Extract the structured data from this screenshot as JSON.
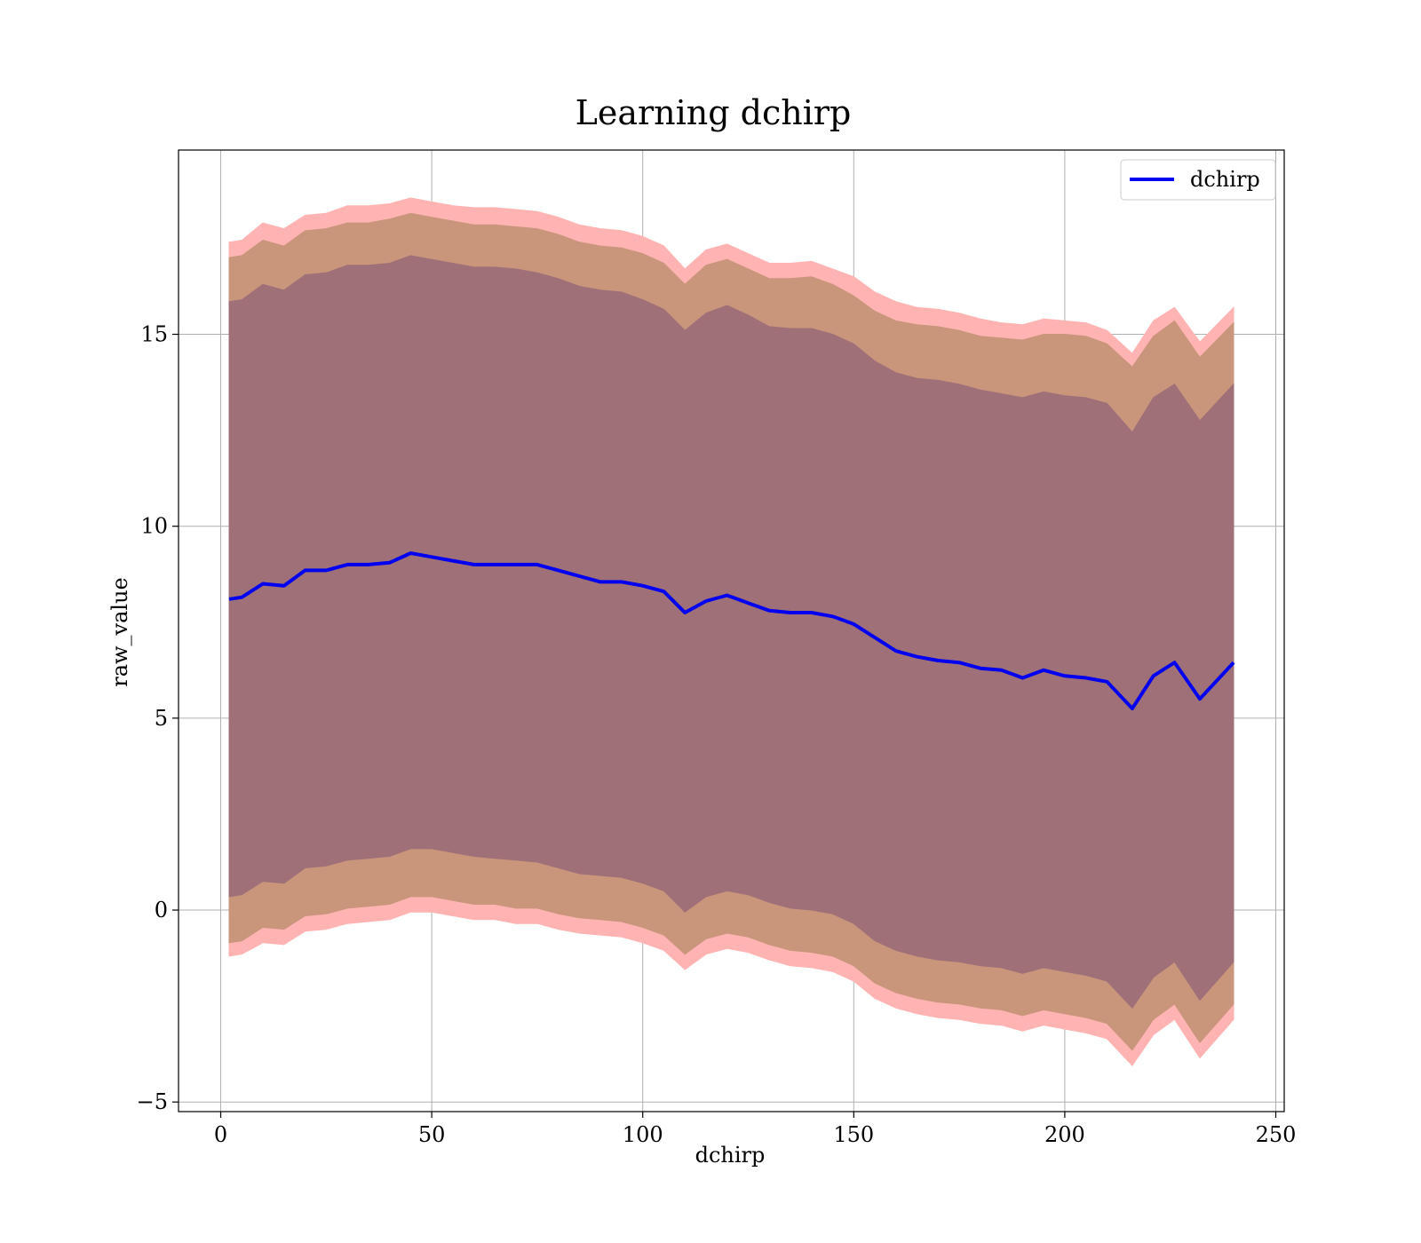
{
  "chart_data": {
    "type": "line",
    "title": "Learning dchirp",
    "xlabel": "dchirp",
    "ylabel": "raw_value",
    "xlim": [
      -10,
      252
    ],
    "ylim": [
      -5.25,
      19.8
    ],
    "xticks": [
      0,
      50,
      100,
      150,
      200,
      250
    ],
    "yticks": [
      -5,
      0,
      5,
      10,
      15
    ],
    "xtick_labels": [
      "0",
      "50",
      "100",
      "150",
      "200",
      "250"
    ],
    "ytick_labels": [
      "−5",
      "0",
      "5",
      "10",
      "15"
    ],
    "grid": true,
    "legend": {
      "position": "top-right",
      "entries": [
        "dchirp"
      ]
    },
    "colors": {
      "line": "#0000ee",
      "band_outer": "#ffb3b3",
      "band_middle": "#c9967c",
      "band_inner": "#a07078",
      "grid": "#b0b0b0"
    },
    "x": [
      2,
      5,
      10,
      15,
      20,
      25,
      30,
      35,
      40,
      45,
      50,
      55,
      60,
      65,
      70,
      75,
      80,
      85,
      90,
      95,
      100,
      105,
      110,
      115,
      120,
      125,
      130,
      135,
      140,
      145,
      150,
      155,
      160,
      165,
      170,
      175,
      180,
      185,
      190,
      195,
      200,
      205,
      210,
      216,
      221,
      226,
      232,
      240
    ],
    "series": [
      {
        "name": "dchirp",
        "values": [
          8.1,
          8.15,
          8.5,
          8.45,
          8.85,
          8.85,
          9.0,
          9.0,
          9.05,
          9.3,
          9.2,
          9.1,
          9.0,
          9.0,
          9.0,
          9.0,
          8.85,
          8.7,
          8.55,
          8.55,
          8.45,
          8.3,
          7.75,
          8.05,
          8.2,
          8.0,
          7.8,
          7.75,
          7.75,
          7.65,
          7.45,
          7.1,
          6.75,
          6.6,
          6.5,
          6.45,
          6.3,
          6.25,
          6.05,
          6.25,
          6.1,
          6.05,
          5.95,
          5.25,
          6.1,
          6.45,
          5.5,
          6.45
        ]
      }
    ],
    "bands": [
      {
        "upper": [
          17.4,
          17.45,
          17.9,
          17.75,
          18.1,
          18.15,
          18.35,
          18.35,
          18.4,
          18.55,
          18.45,
          18.35,
          18.3,
          18.3,
          18.25,
          18.2,
          18.05,
          17.85,
          17.75,
          17.7,
          17.55,
          17.3,
          16.7,
          17.2,
          17.35,
          17.1,
          16.85,
          16.85,
          16.9,
          16.7,
          16.5,
          16.1,
          15.85,
          15.7,
          15.65,
          15.55,
          15.4,
          15.3,
          15.25,
          15.4,
          15.35,
          15.3,
          15.1,
          14.5,
          15.35,
          15.7,
          14.8,
          15.7
        ],
        "lower": [
          -1.2,
          -1.15,
          -0.85,
          -0.9,
          -0.55,
          -0.5,
          -0.35,
          -0.3,
          -0.25,
          -0.05,
          -0.05,
          -0.15,
          -0.25,
          -0.25,
          -0.35,
          -0.35,
          -0.5,
          -0.6,
          -0.65,
          -0.7,
          -0.85,
          -1.05,
          -1.55,
          -1.15,
          -1.0,
          -1.1,
          -1.3,
          -1.45,
          -1.5,
          -1.6,
          -1.85,
          -2.3,
          -2.55,
          -2.7,
          -2.8,
          -2.85,
          -2.95,
          -3.0,
          -3.15,
          -3.0,
          -3.1,
          -3.2,
          -3.35,
          -4.05,
          -3.25,
          -2.85,
          -3.85,
          -2.85
        ]
      },
      {
        "upper": [
          17.0,
          17.05,
          17.45,
          17.3,
          17.7,
          17.75,
          17.9,
          17.9,
          18.0,
          18.15,
          18.05,
          17.95,
          17.85,
          17.85,
          17.8,
          17.75,
          17.6,
          17.4,
          17.3,
          17.25,
          17.1,
          16.85,
          16.3,
          16.8,
          16.95,
          16.7,
          16.45,
          16.45,
          16.5,
          16.3,
          16.0,
          15.6,
          15.35,
          15.25,
          15.2,
          15.1,
          14.95,
          14.9,
          14.85,
          15.0,
          15.0,
          14.95,
          14.75,
          14.15,
          14.95,
          15.35,
          14.4,
          15.3
        ],
        "lower": [
          -0.85,
          -0.8,
          -0.45,
          -0.5,
          -0.15,
          -0.1,
          0.05,
          0.1,
          0.15,
          0.35,
          0.35,
          0.25,
          0.15,
          0.15,
          0.05,
          0.05,
          -0.1,
          -0.2,
          -0.25,
          -0.3,
          -0.45,
          -0.65,
          -1.15,
          -0.75,
          -0.6,
          -0.7,
          -0.9,
          -1.05,
          -1.1,
          -1.2,
          -1.45,
          -1.9,
          -2.15,
          -2.3,
          -2.4,
          -2.45,
          -2.55,
          -2.6,
          -2.75,
          -2.6,
          -2.7,
          -2.8,
          -2.95,
          -3.65,
          -2.85,
          -2.45,
          -3.45,
          -2.45
        ]
      },
      {
        "upper": [
          15.85,
          15.9,
          16.3,
          16.15,
          16.55,
          16.6,
          16.8,
          16.8,
          16.85,
          17.05,
          16.95,
          16.85,
          16.75,
          16.75,
          16.7,
          16.6,
          16.45,
          16.25,
          16.15,
          16.1,
          15.9,
          15.65,
          15.1,
          15.55,
          15.75,
          15.5,
          15.2,
          15.15,
          15.15,
          15.0,
          14.75,
          14.3,
          14.0,
          13.85,
          13.8,
          13.7,
          13.55,
          13.45,
          13.35,
          13.5,
          13.4,
          13.35,
          13.2,
          12.45,
          13.35,
          13.7,
          12.75,
          13.7
        ],
        "lower": [
          0.35,
          0.4,
          0.75,
          0.7,
          1.1,
          1.15,
          1.3,
          1.35,
          1.4,
          1.6,
          1.6,
          1.5,
          1.4,
          1.35,
          1.3,
          1.25,
          1.1,
          0.95,
          0.9,
          0.85,
          0.7,
          0.5,
          -0.05,
          0.35,
          0.5,
          0.4,
          0.2,
          0.05,
          0.0,
          -0.1,
          -0.35,
          -0.8,
          -1.05,
          -1.2,
          -1.3,
          -1.35,
          -1.45,
          -1.5,
          -1.65,
          -1.5,
          -1.6,
          -1.7,
          -1.85,
          -2.55,
          -1.75,
          -1.35,
          -2.35,
          -1.35
        ]
      }
    ]
  }
}
